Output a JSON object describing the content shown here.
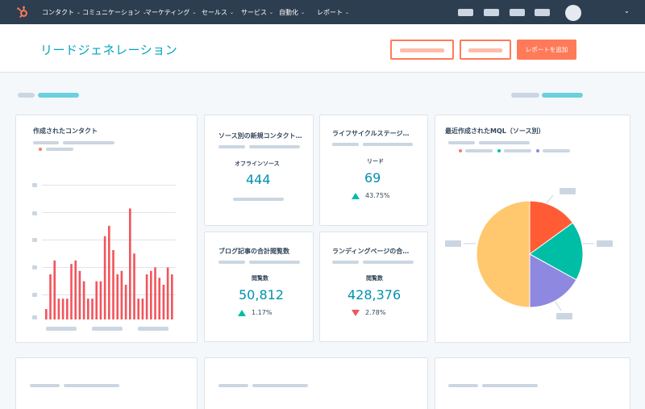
{
  "nav": {
    "items": [
      {
        "label": "コンタクト"
      },
      {
        "label": "コミュニケーション"
      },
      {
        "label": "マーケティング"
      },
      {
        "label": "セールス"
      },
      {
        "label": "サービス"
      },
      {
        "label": "自動化"
      },
      {
        "label": "レポート"
      }
    ]
  },
  "header": {
    "title": "リードジェネレーション",
    "primary_button": "レポートを追加"
  },
  "cards": {
    "contacts_created": {
      "title": "作成されたコンタクト"
    },
    "source_contacts": {
      "title": "ソース別の新規コンタクト…",
      "metric_label": "オフラインソース",
      "metric_value": "444"
    },
    "lifecycle": {
      "title": "ライフサイクルステージ…",
      "metric_label": "リード",
      "metric_value": "69",
      "change": "43.75%",
      "direction": "up"
    },
    "blog_views": {
      "title": "ブログ記事の合計閲覧数",
      "metric_label": "閲覧数",
      "metric_value": "50,812",
      "change": "1.17%",
      "direction": "up"
    },
    "landing_pages": {
      "title": "ランディングページの合…",
      "metric_label": "閲覧数",
      "metric_value": "428,376",
      "change": "2.78%",
      "direction": "down"
    },
    "recent_mql": {
      "title": "最近作成されたMQL（ソース別）"
    }
  },
  "colors": {
    "accent": "#00a4bd",
    "brand": "#ff7a59",
    "up": "#00bda5",
    "down": "#f2545b",
    "nav_bg": "#2d3e50"
  },
  "chart_data": [
    {
      "type": "bar",
      "values": [
        3,
        13,
        17,
        6,
        6,
        6,
        16,
        17,
        14,
        11,
        6,
        6,
        11,
        11,
        24,
        27,
        20,
        13,
        14,
        10,
        32,
        19,
        6,
        6,
        13,
        14,
        15,
        12,
        10,
        15,
        13
      ],
      "series": [
        {
          "values": [
            3,
            13,
            17,
            6,
            6,
            6,
            16,
            17,
            14,
            11,
            6,
            6,
            11,
            11,
            24,
            27,
            20,
            13,
            14,
            10,
            32,
            19,
            6,
            6,
            13,
            14,
            15,
            12,
            10,
            15,
            13
          ],
          "color": "#f2545b"
        }
      ],
      "grid": true
    },
    {
      "type": "pie",
      "slices": [
        {
          "value": 50,
          "color": "#ffc86e"
        },
        {
          "value": 15,
          "color": "#ff5c35"
        },
        {
          "value": 18,
          "color": "#00bda5"
        },
        {
          "value": 17,
          "color": "#8e88e0"
        }
      ]
    }
  ]
}
